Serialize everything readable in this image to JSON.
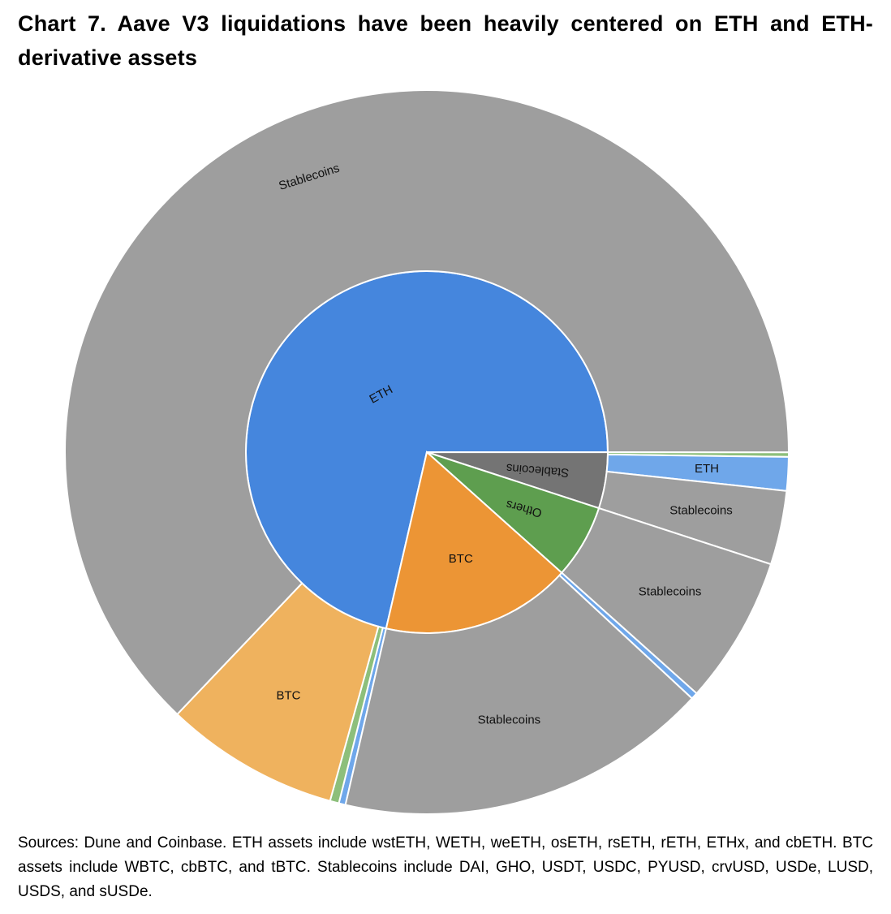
{
  "chart_data": {
    "type": "sunburst",
    "title": "Chart 7. Aave V3 liquidations have been heavily centered on ETH and ETH-derivative assets",
    "note": "Sources: Dune and Coinbase. ETH assets include wstETH, WETH, weETH, osETH, rsETH, rETH, ETHx, and cbETH. BTC assets include WBTC, cbBTC, and tBTC. Stablecoins include DAI, GHO, USDT, USDC, PYUSD, crvUSD, USDe, LUSD, USDS, and sUSDe.",
    "series": [
      {
        "name": "ETH",
        "color": "#4586dd",
        "value": 71.4,
        "children": [
          {
            "name": "ETH",
            "color": "#6fa7ea",
            "value": 0.3
          },
          {
            "name": "Others",
            "color": "#8dbf7b",
            "value": 0.4
          },
          {
            "name": "BTC",
            "color": "#efb25e",
            "value": 7.8
          },
          {
            "name": "Stablecoins",
            "color": "#9e9e9e",
            "value": 62.9
          }
        ]
      },
      {
        "name": "Stablecoins",
        "color": "#747474",
        "value": 5.0,
        "children": [
          {
            "name": "Others",
            "color": "#8dbf7b",
            "value": 0.2
          },
          {
            "name": "ETH",
            "color": "#6fa7ea",
            "value": 1.5
          },
          {
            "name": "Stablecoins",
            "color": "#9e9e9e",
            "value": 3.3
          }
        ]
      },
      {
        "name": "Others",
        "color": "#5e9e4f",
        "value": 6.6,
        "children": [
          {
            "name": "Stablecoins",
            "color": "#9e9e9e",
            "value": 6.6
          }
        ]
      },
      {
        "name": "BTC",
        "color": "#ec9535",
        "value": 17.0,
        "children": [
          {
            "name": "ETH",
            "color": "#6fa7ea",
            "value": 0.3
          },
          {
            "name": "Stablecoins",
            "color": "#9e9e9e",
            "value": 16.7
          }
        ]
      }
    ]
  }
}
